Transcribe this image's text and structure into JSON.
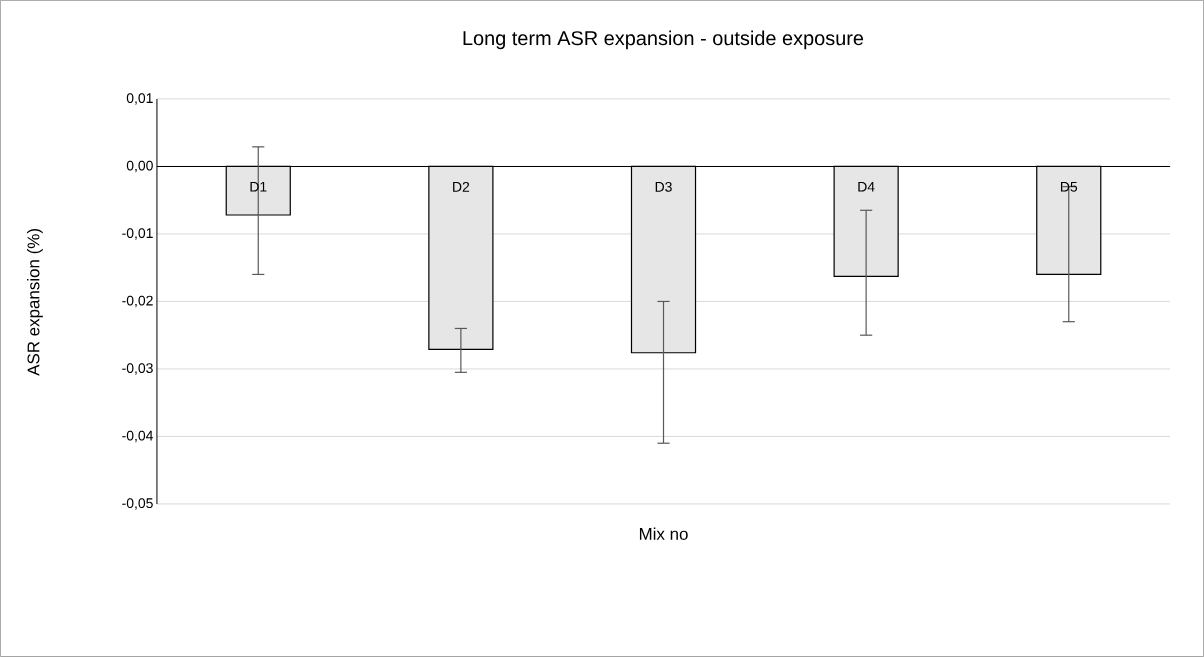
{
  "chart_data": {
    "type": "bar",
    "title": "Long term ASR expansion - outside exposure",
    "xlabel": "Mix no",
    "ylabel": "ASR expansion (%)",
    "categories": [
      "D1",
      "D2",
      "D3",
      "D4",
      "D5"
    ],
    "values": [
      -0.0072,
      -0.0271,
      -0.0276,
      -0.0163,
      -0.016
    ],
    "errors": [
      [
        -0.016,
        0.0029
      ],
      [
        -0.0305,
        -0.024
      ],
      [
        -0.041,
        -0.02
      ],
      [
        -0.025,
        -0.0065
      ],
      [
        -0.023,
        -0.003
      ]
    ],
    "color": "#e6e6e6",
    "ylim": [
      -0.05,
      0.01
    ],
    "yticks": [
      {
        "value": 0.01,
        "label": "0,01"
      },
      {
        "value": 0.0,
        "label": "0,00"
      },
      {
        "value": -0.01,
        "label": "-0,01"
      },
      {
        "value": -0.02,
        "label": "-0,02"
      },
      {
        "value": -0.03,
        "label": "-0,03"
      },
      {
        "value": -0.04,
        "label": "-0,04"
      },
      {
        "value": -0.05,
        "label": "-0,05"
      }
    ],
    "grid": "y"
  }
}
